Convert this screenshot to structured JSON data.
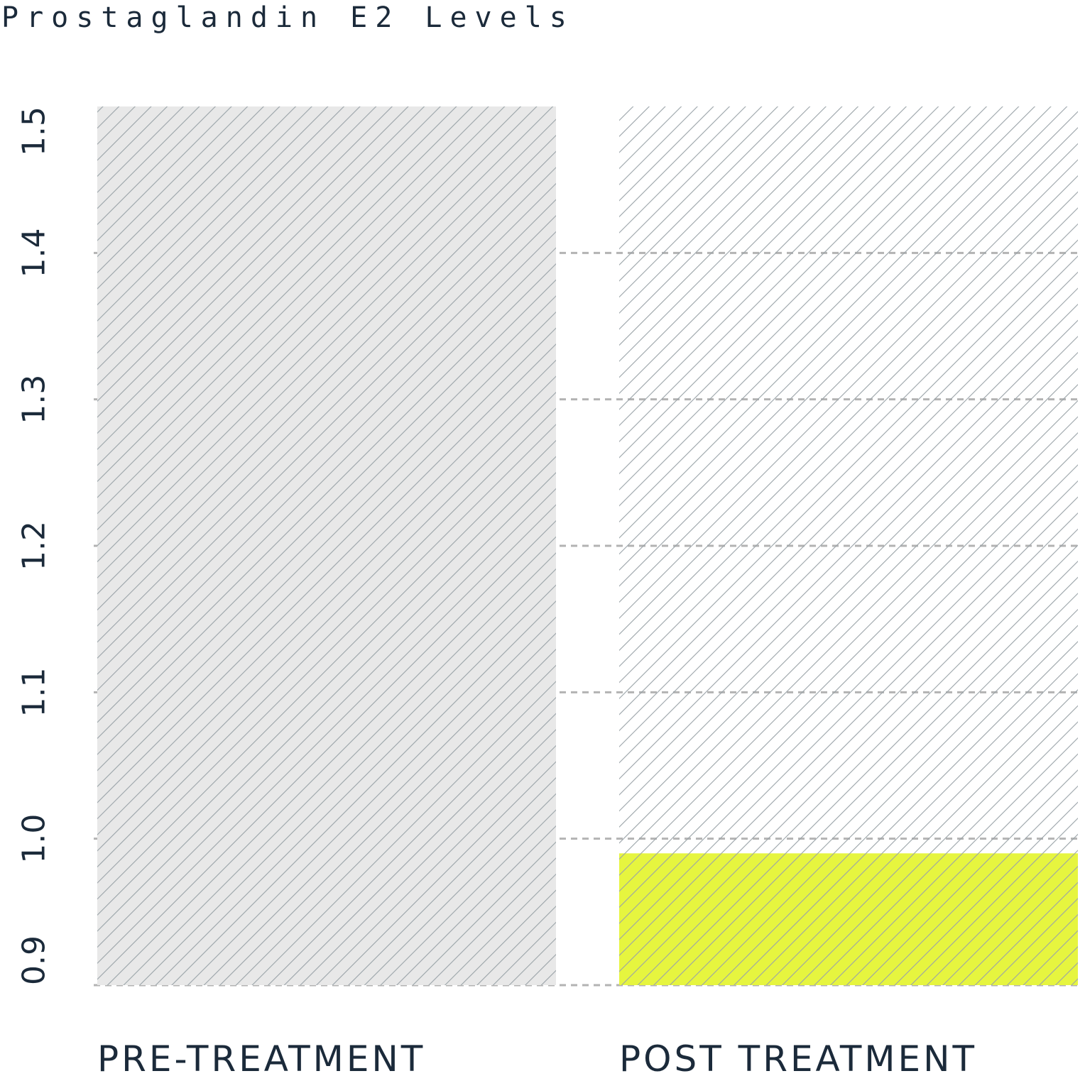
{
  "chart_data": {
    "type": "bar",
    "title": "Prostaglandin E2 Levels",
    "categories": [
      "PRE-TREATMENT",
      "POST TREATMENT"
    ],
    "values": [
      1.5,
      0.99
    ],
    "reference_max": 1.5,
    "ylim": [
      0.9,
      1.5
    ],
    "yticks": [
      "0.9",
      "1.0",
      "1.1",
      "1.2",
      "1.3",
      "1.4",
      "1.5"
    ],
    "grid": true,
    "colors": {
      "pre_bar": "#e8e8e8",
      "post_bar": "#e6f53f",
      "hatch": "#9aa3a8",
      "text": "#1b2a3a",
      "grid": "#b3b3b3"
    }
  }
}
